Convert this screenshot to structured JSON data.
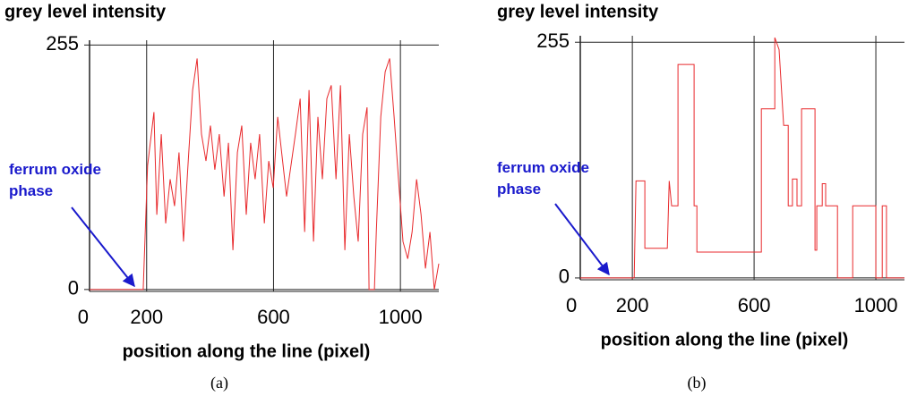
{
  "chart_data": [
    {
      "type": "line",
      "title": "grey level intensity",
      "x_label": "position along the line (pixel)",
      "caption": "(a)",
      "annotation": "ferrum oxide phase",
      "annotation_color": "#1a1acc",
      "grid": true,
      "xlim": [
        20,
        1121
      ],
      "ylim": [
        -2,
        260
      ],
      "xticks": [
        0,
        200,
        600,
        1000
      ],
      "yticks": [
        0,
        255
      ],
      "series": [
        {
          "color": "#e8292c",
          "x": [
            20,
            189,
            195,
            203,
            223,
            232,
            246,
            260,
            274,
            288,
            302,
            316,
            331,
            345,
            359,
            373,
            387,
            401,
            415,
            429,
            444,
            458,
            472,
            486,
            500,
            514,
            528,
            542,
            556,
            571,
            585,
            599,
            613,
            641,
            669,
            684,
            698,
            712,
            726,
            740,
            754,
            768,
            782,
            797,
            811,
            825,
            839,
            853,
            867,
            881,
            895,
            901,
            918,
            924,
            938,
            952,
            966,
            980,
            994,
            1008,
            1023,
            1037,
            1051,
            1065,
            1079,
            1093,
            1107,
            1121
          ],
          "values": [
            0,
            0,
            55,
            129,
            185,
            78,
            162,
            69,
            115,
            87,
            143,
            50,
            134,
            208,
            241,
            162,
            134,
            171,
            125,
            162,
            97,
            153,
            41,
            143,
            171,
            78,
            153,
            115,
            162,
            69,
            134,
            106,
            180,
            97,
            162,
            199,
            60,
            208,
            50,
            180,
            115,
            199,
            213,
            115,
            213,
            41,
            162,
            97,
            50,
            162,
            190,
            0,
            0,
            60,
            180,
            227,
            241,
            180,
            115,
            50,
            32,
            60,
            115,
            78,
            22,
            60,
            0,
            27
          ]
        }
      ]
    },
    {
      "type": "line",
      "title": "grey level intensity",
      "x_label": "position along the line (pixel)",
      "caption": "(b)",
      "annotation": "ferrum oxide phase",
      "annotation_color": "#1a1acc",
      "grid": true,
      "xlim": [
        29,
        1094
      ],
      "ylim": [
        -2,
        262
      ],
      "xticks": [
        0,
        200,
        600,
        1000
      ],
      "yticks": [
        0,
        255
      ],
      "series": [
        {
          "color": "#e8292c",
          "x": [
            29,
            206,
            212,
            241,
            241,
            315,
            321,
            329,
            350,
            350,
            403,
            403,
            412,
            412,
            624,
            624,
            668,
            668,
            682,
            697,
            712,
            712,
            726,
            726,
            741,
            741,
            756,
            756,
            800,
            800,
            806,
            806,
            824,
            824,
            835,
            835,
            874,
            874,
            924,
            924,
            1000,
            1000,
            1021,
            1021,
            1035,
            1035,
            1094
          ],
          "values": [
            0,
            0,
            105,
            105,
            32,
            32,
            105,
            78,
            78,
            231,
            231,
            78,
            78,
            28,
            28,
            183,
            183,
            260,
            247,
            165,
            165,
            78,
            78,
            107,
            107,
            78,
            78,
            183,
            183,
            30,
            30,
            78,
            78,
            102,
            102,
            78,
            78,
            0,
            0,
            78,
            78,
            0,
            0,
            78,
            78,
            0,
            0
          ]
        }
      ]
    }
  ]
}
